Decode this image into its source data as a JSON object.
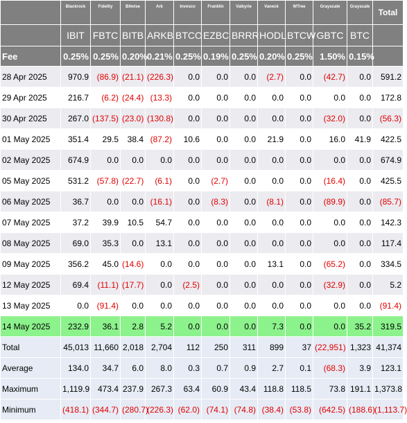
{
  "colors": {
    "header_bg": "#808080",
    "highlight": "#8cf28c",
    "summary_bg": "#e6ebf5",
    "stripe": "#ebebf0",
    "negative": "#e00000"
  },
  "header": {
    "issuers": [
      "Blackrock",
      "Fidelity",
      "Bitwise",
      "Ark",
      "Invesco",
      "Franklin",
      "Valkyrie",
      "Vaneck",
      "WTree",
      "Grayscale",
      "Grayscale"
    ],
    "total_label": "Total",
    "tickers": [
      "IBIT",
      "FBTC",
      "BITB",
      "ARKB",
      "BTCO",
      "EZBC",
      "BRRR",
      "HODL",
      "BTCW",
      "GBTC",
      "BTC"
    ],
    "fee_label": "Fee",
    "fees": [
      "0.25%",
      "0.25%",
      "0.20%",
      "0.21%",
      "0.25%",
      "0.19%",
      "0.25%",
      "0.20%",
      "0.25%",
      "1.50%",
      "0.15%"
    ]
  },
  "rows": [
    {
      "label": "28 Apr 2025",
      "values": [
        "970.9",
        "(86.9)",
        "(21.1)",
        "(226.3)",
        "0.0",
        "0.0",
        "0.0",
        "(2.7)",
        "0.0",
        "(42.7)",
        "0.0"
      ],
      "total": "591.2"
    },
    {
      "label": "29 Apr 2025",
      "values": [
        "216.7",
        "(6.2)",
        "(24.4)",
        "(13.3)",
        "0.0",
        "0.0",
        "0.0",
        "0.0",
        "0.0",
        "0.0",
        "0.0"
      ],
      "total": "172.8"
    },
    {
      "label": "30 Apr 2025",
      "values": [
        "267.0",
        "(137.5)",
        "(23.0)",
        "(130.8)",
        "0.0",
        "0.0",
        "0.0",
        "0.0",
        "0.0",
        "(32.0)",
        "0.0"
      ],
      "total": "(56.3)"
    },
    {
      "label": "01 May 2025",
      "values": [
        "351.4",
        "29.5",
        "38.4",
        "(87.2)",
        "10.6",
        "0.0",
        "0.0",
        "21.9",
        "0.0",
        "16.0",
        "41.9"
      ],
      "total": "422.5"
    },
    {
      "label": "02 May 2025",
      "values": [
        "674.9",
        "0.0",
        "0.0",
        "0.0",
        "0.0",
        "0.0",
        "0.0",
        "0.0",
        "0.0",
        "0.0",
        "0.0"
      ],
      "total": "674.9"
    },
    {
      "label": "05 May 2025",
      "values": [
        "531.2",
        "(57.8)",
        "(22.7)",
        "(6.1)",
        "0.0",
        "(2.7)",
        "0.0",
        "0.0",
        "0.0",
        "(16.4)",
        "0.0"
      ],
      "total": "425.5"
    },
    {
      "label": "06 May 2025",
      "values": [
        "36.7",
        "0.0",
        "0.0",
        "(16.1)",
        "0.0",
        "(8.3)",
        "0.0",
        "(8.1)",
        "0.0",
        "(89.9)",
        "0.0"
      ],
      "total": "(85.7)"
    },
    {
      "label": "07 May 2025",
      "values": [
        "37.2",
        "39.9",
        "10.5",
        "54.7",
        "0.0",
        "0.0",
        "0.0",
        "0.0",
        "0.0",
        "0.0",
        "0.0"
      ],
      "total": "142.3"
    },
    {
      "label": "08 May 2025",
      "values": [
        "69.0",
        "35.3",
        "0.0",
        "13.1",
        "0.0",
        "0.0",
        "0.0",
        "0.0",
        "0.0",
        "0.0",
        "0.0"
      ],
      "total": "117.4"
    },
    {
      "label": "09 May 2025",
      "values": [
        "356.2",
        "45.0",
        "(14.6)",
        "0.0",
        "0.0",
        "0.0",
        "0.0",
        "13.1",
        "0.0",
        "(65.2)",
        "0.0"
      ],
      "total": "334.5"
    },
    {
      "label": "12 May 2025",
      "values": [
        "69.4",
        "(11.1)",
        "(17.7)",
        "0.0",
        "(2.5)",
        "0.0",
        "0.0",
        "0.0",
        "0.0",
        "(32.9)",
        "0.0"
      ],
      "total": "5.2"
    },
    {
      "label": "13 May 2025",
      "values": [
        "0.0",
        "(91.4)",
        "0.0",
        "0.0",
        "0.0",
        "0.0",
        "0.0",
        "0.0",
        "0.0",
        "0.0",
        "0.0"
      ],
      "total": "(91.4)"
    },
    {
      "label": "14 May 2025",
      "values": [
        "232.9",
        "36.1",
        "2.8",
        "5.2",
        "0.0",
        "0.0",
        "0.0",
        "7.3",
        "0.0",
        "0.0",
        "35.2"
      ],
      "total": "319.5",
      "highlight": true
    }
  ],
  "summary": [
    {
      "label": "Total",
      "values": [
        "45,013",
        "11,660",
        "2,018",
        "2,704",
        "112",
        "250",
        "311",
        "899",
        "37",
        "(22,951)",
        "1,323"
      ],
      "total": "41,374"
    },
    {
      "label": "Average",
      "values": [
        "134.0",
        "34.7",
        "6.0",
        "8.0",
        "0.3",
        "0.7",
        "0.9",
        "2.7",
        "0.1",
        "(68.3)",
        "3.9"
      ],
      "total": "123.1"
    },
    {
      "label": "Maximum",
      "values": [
        "1,119.9",
        "473.4",
        "237.9",
        "267.3",
        "63.4",
        "60.9",
        "43.4",
        "118.8",
        "118.5",
        "73.8",
        "191.1"
      ],
      "total": "1,373.8"
    },
    {
      "label": "Minimum",
      "values": [
        "(418.1)",
        "(344.7)",
        "(280.7)",
        "(226.3)",
        "(62.0)",
        "(74.1)",
        "(74.8)",
        "(38.4)",
        "(53.8)",
        "(642.5)",
        "(188.6)"
      ],
      "total": "(1,113.7)"
    }
  ]
}
